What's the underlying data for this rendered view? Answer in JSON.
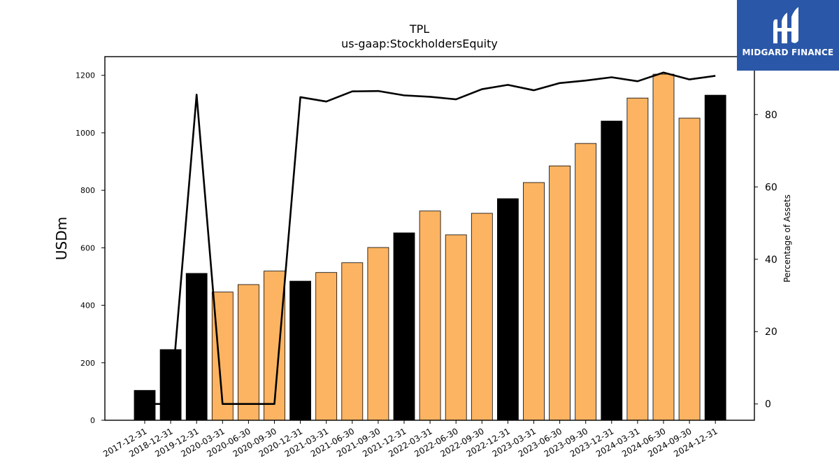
{
  "chart_data": {
    "type": "bar",
    "title": "TPL",
    "subtitle": "us-gaap:StockholdersEquity",
    "ylabel": "USDm",
    "y2label": "Percentage of Assets",
    "ylim": [
      0,
      1265
    ],
    "y2lim": [
      -4.5,
      96
    ],
    "yticks": [
      0,
      200,
      400,
      600,
      800,
      1000,
      1200
    ],
    "y2ticks": [
      0,
      20,
      40,
      60,
      80
    ],
    "grid": false,
    "categories": [
      "2017-12-31",
      "2018-12-31",
      "2019-12-31",
      "2020-03-31",
      "2020-06-30",
      "2020-09-30",
      "2020-12-31",
      "2021-03-31",
      "2021-06-30",
      "2021-09-30",
      "2021-12-31",
      "2022-03-31",
      "2022-06-30",
      "2022-09-30",
      "2022-12-31",
      "2023-03-31",
      "2023-06-30",
      "2023-09-30",
      "2023-12-31",
      "2024-03-31",
      "2024-06-30",
      "2024-09-30",
      "2024-12-31"
    ],
    "series": [
      {
        "type": "bar",
        "values": [
          104,
          246,
          511,
          446,
          472,
          519,
          484,
          514,
          548,
          601,
          652,
          728,
          645,
          720,
          771,
          827,
          885,
          963,
          1041,
          1121,
          1204,
          1051,
          1131
        ],
        "bar_colors": [
          "#000000",
          "#000000",
          "#000000",
          "#fdb462",
          "#fdb462",
          "#fdb462",
          "#000000",
          "#fdb462",
          "#fdb462",
          "#fdb462",
          "#000000",
          "#fdb462",
          "#fdb462",
          "#fdb462",
          "#000000",
          "#fdb462",
          "#fdb462",
          "#fdb462",
          "#000000",
          "#fdb462",
          "#fdb462",
          "#fdb462",
          "#000000"
        ]
      },
      {
        "type": "line",
        "axis": "right",
        "color": "#000000",
        "values": [
          0,
          0,
          85.5,
          0,
          0,
          0,
          84.8,
          83.6,
          86.4,
          86.5,
          85.3,
          84.9,
          84.2,
          87.0,
          88.2,
          86.7,
          88.7,
          89.4,
          90.3,
          89.2,
          91.6,
          89.7,
          90.7
        ]
      }
    ]
  },
  "logo": {
    "text": "MIDGARD FINANCE"
  }
}
